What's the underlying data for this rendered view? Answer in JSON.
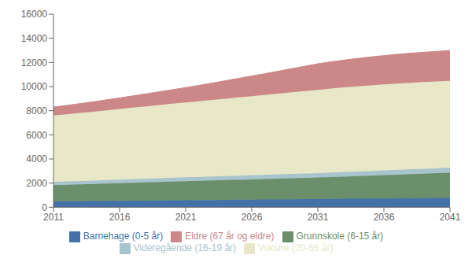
{
  "chart_data": {
    "type": "area",
    "stacked": true,
    "grid": false,
    "legend": "bottom",
    "x": [
      2011,
      2012,
      2013,
      2014,
      2015,
      2016,
      2017,
      2018,
      2019,
      2020,
      2021,
      2022,
      2023,
      2024,
      2025,
      2026,
      2027,
      2028,
      2029,
      2030,
      2031,
      2032,
      2033,
      2034,
      2035,
      2036,
      2037,
      2038,
      2039,
      2040,
      2041
    ],
    "xlim": [
      2011,
      2041
    ],
    "xticks": [
      2011,
      2016,
      2021,
      2026,
      2031,
      2036,
      2041
    ],
    "ylim": [
      0,
      16000
    ],
    "yticks": [
      0,
      2000,
      4000,
      6000,
      8000,
      10000,
      12000,
      14000,
      16000
    ],
    "series": [
      {
        "name": "Barnehage (0-5 år)",
        "color": "#4472a8",
        "values": [
          480,
          490,
          500,
          510,
          520,
          530,
          540,
          550,
          560,
          570,
          580,
          590,
          600,
          610,
          620,
          630,
          640,
          650,
          660,
          670,
          680,
          690,
          700,
          710,
          720,
          730,
          740,
          750,
          760,
          770,
          780
        ]
      },
      {
        "name": "Grunnskole (6-15 år)",
        "color": "#6b8e6b",
        "values": [
          1350,
          1370,
          1390,
          1415,
          1440,
          1465,
          1490,
          1515,
          1540,
          1560,
          1580,
          1600,
          1620,
          1640,
          1660,
          1680,
          1700,
          1720,
          1740,
          1760,
          1780,
          1810,
          1840,
          1870,
          1900,
          1930,
          1960,
          1990,
          2020,
          2050,
          2080
        ]
      },
      {
        "name": "Videregående (16-19 år)",
        "color": "#a8c4cc",
        "values": [
          270,
          275,
          280,
          285,
          290,
          295,
          300,
          305,
          310,
          315,
          320,
          325,
          330,
          335,
          340,
          345,
          350,
          355,
          360,
          365,
          370,
          375,
          380,
          385,
          390,
          395,
          400,
          405,
          410,
          415,
          420
        ]
      },
      {
        "name": "Voksne (20-66 år)",
        "color": "#e8e8c8",
        "values": [
          5500,
          5570,
          5640,
          5710,
          5780,
          5850,
          5920,
          5990,
          6060,
          6130,
          6200,
          6270,
          6340,
          6410,
          6480,
          6550,
          6620,
          6690,
          6760,
          6830,
          6900,
          6960,
          7010,
          7050,
          7090,
          7120,
          7150,
          7170,
          7185,
          7195,
          7200
        ]
      },
      {
        "name": "Eldre (67 år og eldre)",
        "color": "#cc8888",
        "values": [
          700,
          740,
          780,
          820,
          870,
          920,
          980,
          1040,
          1100,
          1170,
          1240,
          1320,
          1400,
          1490,
          1580,
          1670,
          1760,
          1860,
          1960,
          2060,
          2160,
          2220,
          2270,
          2320,
          2360,
          2390,
          2420,
          2450,
          2470,
          2490,
          2510
        ]
      }
    ]
  }
}
